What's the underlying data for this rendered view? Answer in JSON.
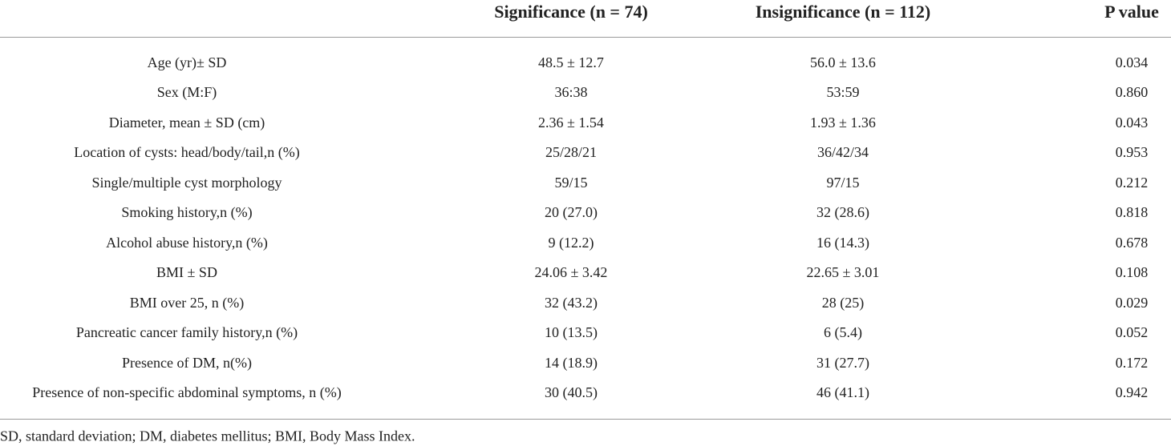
{
  "table": {
    "header": [
      "Significance (n = 74)",
      "Insignificance (n = 112)",
      "P value"
    ],
    "rows": [
      [
        "Age (yr)± SD",
        "48.5 ± 12.7",
        "56.0 ± 13.6",
        "0.034"
      ],
      [
        "Sex (M:F)",
        "36:38",
        "53:59",
        "0.860"
      ],
      [
        "Diameter, mean ± SD (cm)",
        "2.36 ± 1.54",
        "1.93 ± 1.36",
        "0.043"
      ],
      [
        "Location of cysts: head/body/tail,n (%)",
        "25/28/21",
        "36/42/34",
        "0.953"
      ],
      [
        "Single/multiple cyst morphology",
        "59/15",
        "97/15",
        "0.212"
      ],
      [
        "Smoking history,n (%)",
        "20 (27.0)",
        "32 (28.6)",
        "0.818"
      ],
      [
        "Alcohol abuse history,n (%)",
        "9 (12.2)",
        "16 (14.3)",
        "0.678"
      ],
      [
        "BMI ± SD",
        "24.06 ± 3.42",
        "22.65 ± 3.01",
        "0.108"
      ],
      [
        "BMI over 25, n (%)",
        "32 (43.2)",
        "28 (25)",
        "0.029"
      ],
      [
        "Pancreatic cancer family history,n (%)",
        "10 (13.5)",
        "6 (5.4)",
        "0.052"
      ],
      [
        "Presence of DM, n(%)",
        "14 (18.9)",
        "31 (27.7)",
        "0.172"
      ],
      [
        "Presence of non-specific abdominal symptoms, n (%)",
        "30 (40.5)",
        "46 (41.1)",
        "0.942"
      ]
    ],
    "footnote": "SD, standard deviation; DM, diabetes mellitus; BMI, Body Mass Index."
  }
}
